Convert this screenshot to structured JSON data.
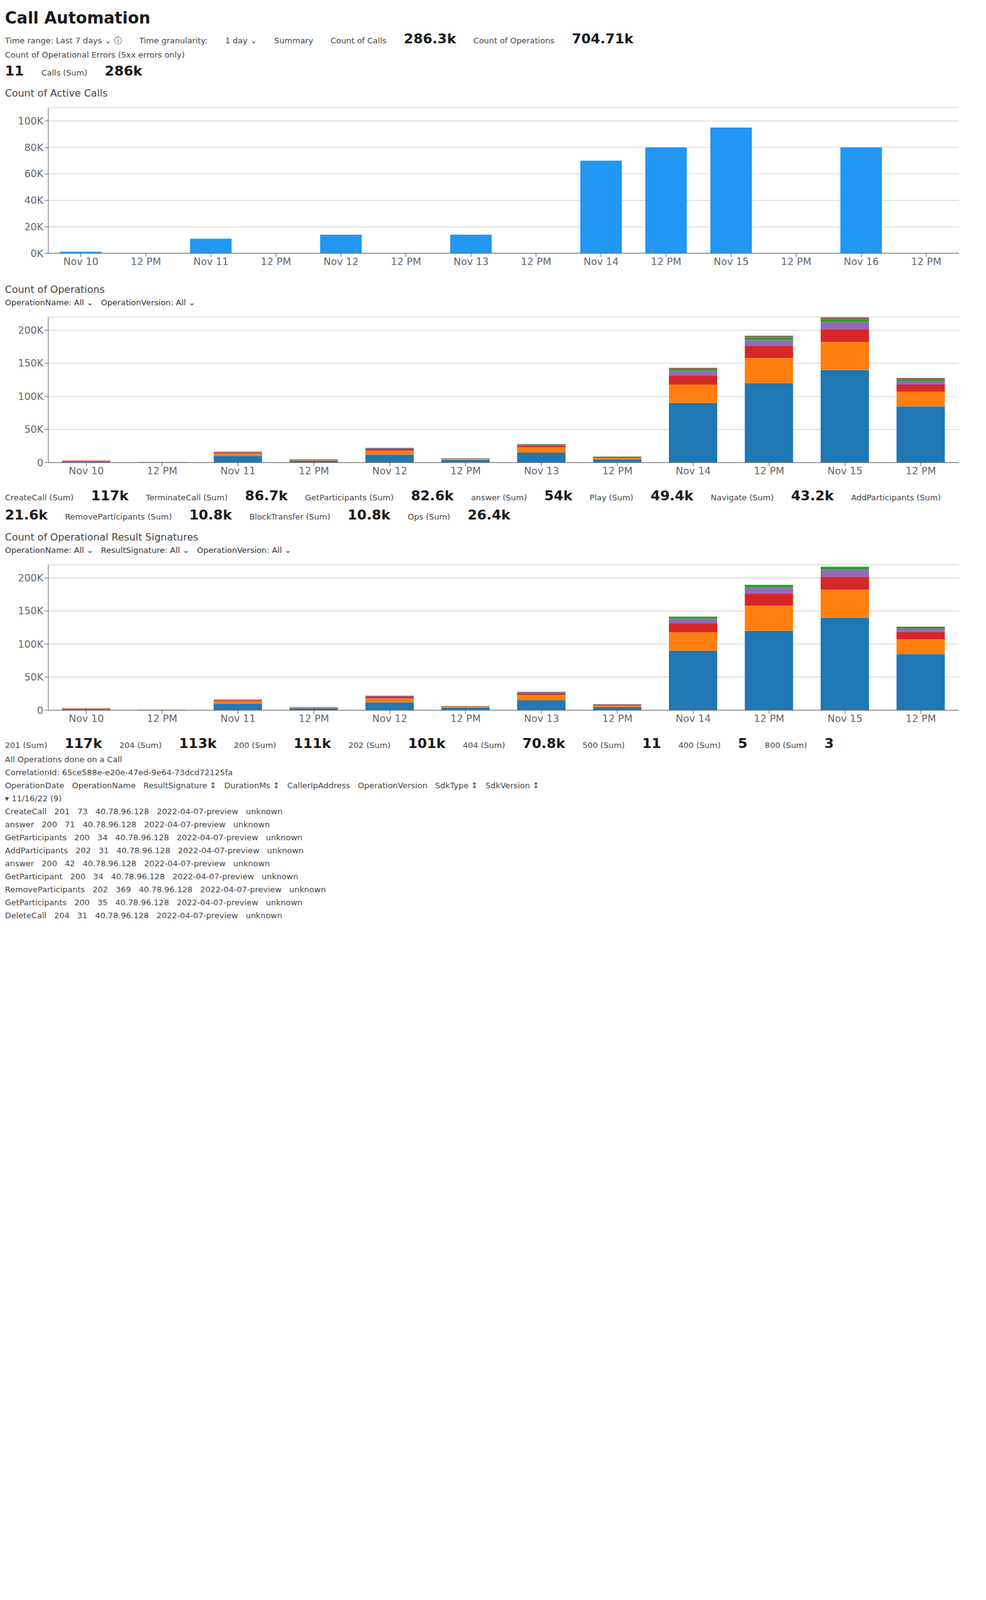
{
  "chart_data": [
    {
      "type": "bar",
      "title": "Count of Active Calls",
      "categories": [
        "Nov 10",
        "12 PM",
        "Nov 11",
        "12 PM",
        "Nov 12",
        "12 PM",
        "Nov 13",
        "12 PM",
        "Nov 14",
        "12 PM",
        "Nov 15",
        "12 PM",
        "Nov 16",
        "12 PM"
      ],
      "values": [
        1200,
        0,
        11000,
        0,
        14000,
        0,
        14000,
        0,
        70000,
        80000,
        95000,
        0,
        80000,
        0
      ],
      "color": "#2196F3",
      "ylim": [
        0,
        110000
      ],
      "yticks": [
        {
          "value": 0,
          "label": "0K"
        },
        {
          "value": 20000,
          "label": "20K"
        },
        {
          "value": 40000,
          "label": "40K"
        },
        {
          "value": 60000,
          "label": "60K"
        },
        {
          "value": 80000,
          "label": "80K"
        },
        {
          "value": 100000,
          "label": "100K"
        }
      ],
      "grid": true,
      "annotations": [
        "Call Automation",
        "Time range: Last 7 days ⌄ ⓘ",
        "Time granularity:",
        "1 day ⌄",
        "Summary",
        "Count of Calls",
        "286.3k",
        "Count of Operations",
        "704.71k",
        "Count of Operational Errors (5xx errors only)",
        "11",
        "Calls (Sum)",
        "286k"
      ]
    },
    {
      "type": "bar",
      "stacked": true,
      "title": "Count of Operations",
      "subtitle": "OperationName: All ⌄   OperationVersion: All ⌄",
      "categories": [
        "Nov 10",
        "12 PM",
        "Nov 11",
        "12 PM",
        "Nov 12",
        "12 PM",
        "Nov 13",
        "12 PM",
        "Nov 14",
        "12 PM",
        "Nov 15",
        "12 PM"
      ],
      "series": [
        {
          "color": "#1f77b4",
          "values": [
            2000,
            500,
            10000,
            3000,
            12000,
            4000,
            15000,
            5000,
            90000,
            120000,
            140000,
            85000
          ]
        },
        {
          "color": "#ff7f0e",
          "values": [
            800,
            200,
            4000,
            1200,
            6000,
            1500,
            8000,
            2500,
            28000,
            38000,
            42000,
            22000
          ]
        },
        {
          "color": "#d62728",
          "values": [
            300,
            100,
            1500,
            500,
            2500,
            600,
            3000,
            1000,
            13000,
            18000,
            20000,
            11000
          ]
        },
        {
          "color": "#9467bd",
          "values": [
            150,
            50,
            600,
            200,
            1000,
            250,
            1200,
            400,
            7000,
            9000,
            10000,
            5500
          ]
        },
        {
          "color": "#2ca02c",
          "values": [
            80,
            25,
            300,
            100,
            500,
            120,
            600,
            200,
            3500,
            4500,
            5000,
            2800
          ]
        },
        {
          "color": "#8c564b",
          "values": [
            40,
            12,
            150,
            50,
            250,
            60,
            300,
            100,
            1800,
            2200,
            2500,
            1400
          ]
        }
      ],
      "ylim": [
        0,
        220000
      ],
      "yticks": [
        0,
        {
          "value": 50000,
          "label": "50K"
        },
        {
          "value": 100000,
          "label": "100K"
        },
        {
          "value": 150000,
          "label": "150K"
        },
        {
          "value": 200000,
          "label": "200K"
        }
      ],
      "grid": true,
      "annotations": [
        "CreateCall (Sum)",
        "117k",
        "TerminateCall (Sum)",
        "86.7k",
        "GetParticipants (Sum)",
        "82.6k",
        "answer (Sum)",
        "54k",
        "Play (Sum)",
        "49.4k",
        "Navigate (Sum)",
        "43.2k",
        "AddParticipants (Sum)",
        "21.6k",
        "RemoveParticipants (Sum)",
        "10.8k",
        "BlockTransfer (Sum)",
        "10.8k",
        "Ops (Sum)",
        "26.4k"
      ]
    },
    {
      "type": "bar",
      "stacked": true,
      "title": "Count of Operational Result Signatures",
      "subtitle": "OperationName: All ⌄   ResultSignature: All ⌄   OperationVersion: All ⌄",
      "categories": [
        "Nov 10",
        "12 PM",
        "Nov 11",
        "12 PM",
        "Nov 12",
        "12 PM",
        "Nov 13",
        "12 PM",
        "Nov 14",
        "12 PM",
        "Nov 15",
        "12 PM"
      ],
      "series": [
        {
          "color": "#1f77b4",
          "values": [
            2000,
            500,
            10000,
            3000,
            12000,
            4000,
            15000,
            5000,
            90000,
            120000,
            140000,
            85000
          ]
        },
        {
          "color": "#ff7f0e",
          "values": [
            800,
            200,
            4000,
            1200,
            6000,
            1500,
            8000,
            2500,
            28000,
            38000,
            42000,
            22000
          ]
        },
        {
          "color": "#d62728",
          "values": [
            300,
            100,
            1500,
            500,
            2500,
            600,
            3000,
            1000,
            13000,
            18000,
            20000,
            11000
          ]
        },
        {
          "color": "#9467bd",
          "values": [
            150,
            50,
            600,
            200,
            1000,
            250,
            1200,
            400,
            7000,
            9000,
            10000,
            5500
          ]
        },
        {
          "color": "#2ca02c",
          "values": [
            80,
            25,
            300,
            100,
            500,
            120,
            600,
            200,
            3500,
            4500,
            5000,
            2800
          ]
        }
      ],
      "ylim": [
        0,
        220000
      ],
      "yticks": [
        0,
        {
          "value": 50000,
          "label": "50K"
        },
        {
          "value": 100000,
          "label": "100K"
        },
        {
          "value": 150000,
          "label": "150K"
        },
        {
          "value": 200000,
          "label": "200K"
        }
      ],
      "grid": true,
      "annotations": [
        "201 (Sum)",
        "117k",
        "204 (Sum)",
        "113k",
        "200 (Sum)",
        "111k",
        "202 (Sum)",
        "101k",
        "404 (Sum)",
        "70.8k",
        "500 (Sum)",
        "11",
        "400 (Sum)",
        "5",
        "800 (Sum)",
        "3",
        "All Operations done on a Call",
        "CorrelationId: 65ce588e-e20e-47ed-9e64-73dcd72125fa",
        "OperationDate   OperationName   ResultSignature ↕   DurationMs ↕   CallerIpAddress   OperationVersion   SdkType ↕   SdkVersion ↕",
        "▾ 11/16/22 (9)",
        "CreateCall   201   73   40.78.96.128   2022-04-07-preview   unknown",
        "answer   200   71   40.78.96.128   2022-04-07-preview   unknown",
        "GetParticipants   200   34   40.78.96.128   2022-04-07-preview   unknown",
        "AddParticipants   202   31   40.78.96.128   2022-04-07-preview   unknown",
        "answer   200   42   40.78.96.128   2022-04-07-preview   unknown",
        "GetParticipant   200   34   40.78.96.128   2022-04-07-preview   unknown",
        "RemoveParticipants   202   369   40.78.96.128   2022-04-07-preview   unknown",
        "GetParticipants   200   35   40.78.96.128   2022-04-07-preview   unknown",
        "DeleteCall   204   31   40.78.96.128   2022-04-07-preview   unknown"
      ]
    }
  ]
}
